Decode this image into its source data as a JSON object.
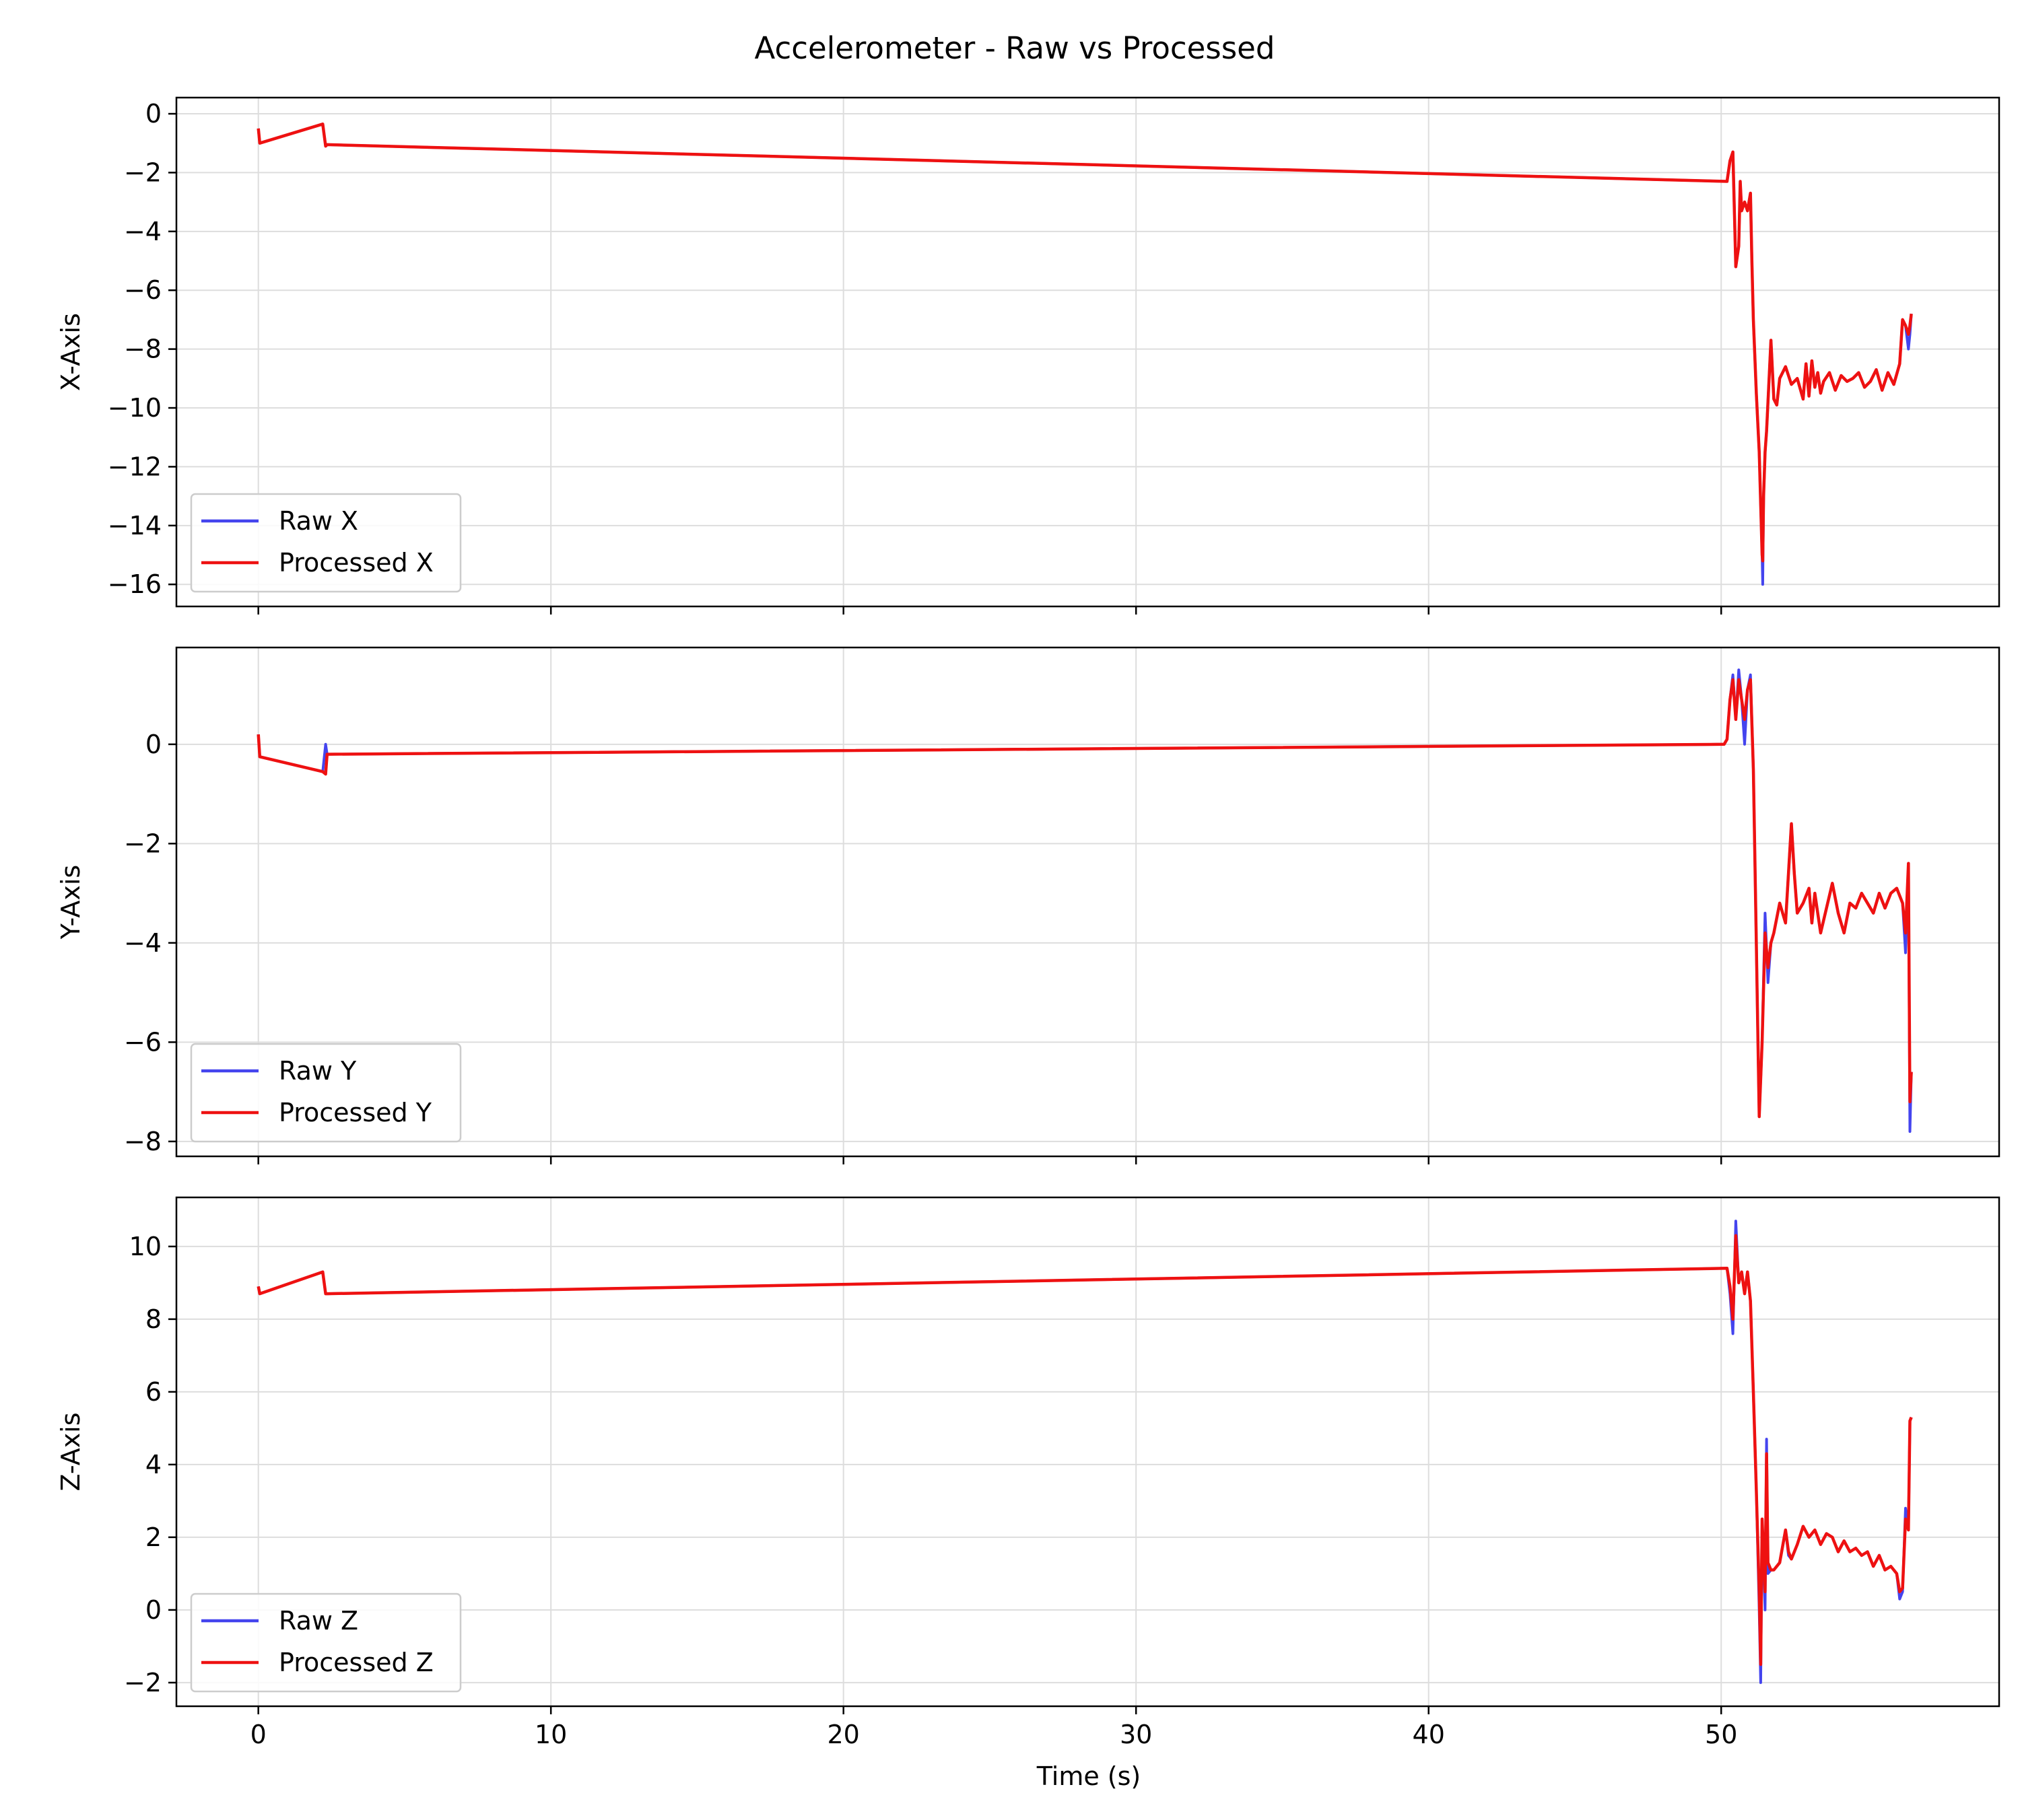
{
  "figure": {
    "title": "Accelerometer - Raw vs Processed",
    "xlabel": "Time (s)"
  },
  "colors": {
    "raw": "#4444ee",
    "processed": "#ee1111",
    "grid": "#dddddd",
    "axes": "#000000"
  },
  "chart_data": [
    {
      "type": "line",
      "ylabel": "X-Axis",
      "xlim": [
        -2.8,
        59.5
      ],
      "ylim": [
        -16.75,
        0.55
      ],
      "xticks": [
        0,
        10,
        20,
        30,
        40,
        50
      ],
      "yticks": [
        0,
        -2,
        -4,
        -6,
        -8,
        -10,
        -12,
        -14,
        -16
      ],
      "grid": true,
      "legend": "lower left",
      "series": [
        {
          "name": "Raw X",
          "role": "raw",
          "x": [
            0,
            0.05,
            2.2,
            2.3,
            2.35,
            50.2,
            50.3,
            50.4,
            50.5,
            50.6,
            50.65,
            50.7,
            50.8,
            50.9,
            51.0,
            51.05,
            51.1,
            51.2,
            51.3,
            51.4,
            51.42,
            51.45,
            51.5,
            51.55,
            51.6,
            51.7,
            51.8,
            51.9,
            52.0,
            52.2,
            52.4,
            52.6,
            52.8,
            52.9,
            53.0,
            53.1,
            53.2,
            53.3,
            53.4,
            53.5,
            53.7,
            53.9,
            54.1,
            54.3,
            54.5,
            54.7,
            54.9,
            55.1,
            55.3,
            55.5,
            55.7,
            55.9,
            56.1,
            56.2,
            56.3,
            56.4,
            56.45,
            56.5
          ],
          "y": [
            -0.5,
            -1.0,
            -0.35,
            -1.1,
            -1.05,
            -2.3,
            -1.6,
            -1.3,
            -5.2,
            -4.5,
            -2.3,
            -3.3,
            -3.0,
            -3.3,
            -2.7,
            -5.0,
            -7.0,
            -9.5,
            -11.5,
            -15.0,
            -16.0,
            -13.0,
            -11.5,
            -10.8,
            -9.8,
            -7.7,
            -9.7,
            -9.9,
            -9.0,
            -8.6,
            -9.2,
            -9.0,
            -9.7,
            -8.5,
            -9.6,
            -8.4,
            -9.3,
            -8.8,
            -9.5,
            -9.1,
            -8.8,
            -9.4,
            -8.9,
            -9.1,
            -9.0,
            -8.8,
            -9.3,
            -9.1,
            -8.7,
            -9.4,
            -8.8,
            -9.2,
            -8.5,
            -7.0,
            -7.2,
            -8.0,
            -7.5,
            -6.8
          ]
        },
        {
          "name": "Processed X",
          "role": "processed",
          "x": [
            0,
            0.05,
            2.2,
            2.3,
            2.35,
            50.2,
            50.3,
            50.4,
            50.5,
            50.6,
            50.65,
            50.7,
            50.8,
            50.9,
            51.0,
            51.05,
            51.1,
            51.2,
            51.3,
            51.4,
            51.42,
            51.45,
            51.5,
            51.55,
            51.6,
            51.7,
            51.8,
            51.9,
            52.0,
            52.2,
            52.4,
            52.6,
            52.8,
            52.9,
            53.0,
            53.1,
            53.2,
            53.3,
            53.4,
            53.5,
            53.7,
            53.9,
            54.1,
            54.3,
            54.5,
            54.7,
            54.9,
            55.1,
            55.3,
            55.5,
            55.7,
            55.9,
            56.1,
            56.2,
            56.3,
            56.4,
            56.45,
            56.5
          ],
          "y": [
            -0.5,
            -1.0,
            -0.35,
            -1.1,
            -1.05,
            -2.3,
            -1.6,
            -1.3,
            -5.2,
            -4.5,
            -2.3,
            -3.3,
            -3.0,
            -3.3,
            -2.7,
            -5.0,
            -7.0,
            -9.5,
            -11.5,
            -15.0,
            -15.2,
            -13.0,
            -11.5,
            -10.8,
            -9.8,
            -7.7,
            -9.7,
            -9.9,
            -9.0,
            -8.6,
            -9.2,
            -9.0,
            -9.7,
            -8.5,
            -9.6,
            -8.4,
            -9.3,
            -8.8,
            -9.5,
            -9.1,
            -8.8,
            -9.4,
            -8.9,
            -9.1,
            -9.0,
            -8.8,
            -9.3,
            -9.1,
            -8.7,
            -9.4,
            -8.8,
            -9.2,
            -8.5,
            -7.0,
            -7.2,
            -7.5,
            -7.2,
            -6.8
          ]
        }
      ]
    },
    {
      "type": "line",
      "ylabel": "Y-Axis",
      "xlim": [
        -2.8,
        59.5
      ],
      "ylim": [
        -8.3,
        1.95
      ],
      "xticks": [
        0,
        10,
        20,
        30,
        40,
        50
      ],
      "yticks": [
        0,
        -2,
        -4,
        -6,
        -8
      ],
      "grid": true,
      "legend": "lower left",
      "series": [
        {
          "name": "Raw Y",
          "role": "raw",
          "x": [
            0,
            0.05,
            2.2,
            2.3,
            2.35,
            50.1,
            50.2,
            50.3,
            50.4,
            50.5,
            50.6,
            50.7,
            50.8,
            50.9,
            51.0,
            51.1,
            51.2,
            51.3,
            51.4,
            51.5,
            51.6,
            51.7,
            51.8,
            52.0,
            52.2,
            52.4,
            52.5,
            52.6,
            52.8,
            53.0,
            53.1,
            53.2,
            53.4,
            53.6,
            53.8,
            54.0,
            54.2,
            54.4,
            54.6,
            54.8,
            55.0,
            55.2,
            55.4,
            55.6,
            55.8,
            56.0,
            56.2,
            56.3,
            56.4,
            56.45,
            56.5
          ],
          "y": [
            0.2,
            -0.25,
            -0.55,
            0.0,
            -0.2,
            0.0,
            0.1,
            0.9,
            1.4,
            0.5,
            1.5,
            0.9,
            0.0,
            1.1,
            1.4,
            -0.5,
            -4.0,
            -7.5,
            -6.0,
            -3.4,
            -4.8,
            -4.0,
            -3.8,
            -3.2,
            -3.6,
            -1.6,
            -2.6,
            -3.4,
            -3.2,
            -2.9,
            -3.6,
            -3.0,
            -3.8,
            -3.3,
            -2.8,
            -3.4,
            -3.8,
            -3.2,
            -3.3,
            -3.0,
            -3.2,
            -3.4,
            -3.0,
            -3.3,
            -3.0,
            -2.9,
            -3.2,
            -4.2,
            -2.4,
            -7.8,
            -6.6
          ]
        },
        {
          "name": "Processed Y",
          "role": "processed",
          "x": [
            0,
            0.05,
            2.2,
            2.3,
            2.35,
            50.1,
            50.2,
            50.3,
            50.4,
            50.5,
            50.6,
            50.7,
            50.8,
            50.9,
            51.0,
            51.1,
            51.2,
            51.3,
            51.4,
            51.5,
            51.6,
            51.7,
            51.8,
            52.0,
            52.2,
            52.4,
            52.5,
            52.6,
            52.8,
            53.0,
            53.1,
            53.2,
            53.4,
            53.6,
            53.8,
            54.0,
            54.2,
            54.4,
            54.6,
            54.8,
            55.0,
            55.2,
            55.4,
            55.6,
            55.8,
            56.0,
            56.2,
            56.3,
            56.4,
            56.45,
            56.5
          ],
          "y": [
            0.2,
            -0.25,
            -0.55,
            -0.6,
            -0.2,
            0.0,
            0.1,
            0.9,
            1.3,
            0.5,
            1.3,
            0.9,
            0.5,
            1.1,
            1.3,
            -0.5,
            -4.0,
            -7.5,
            -6.0,
            -3.8,
            -4.5,
            -4.0,
            -3.8,
            -3.2,
            -3.6,
            -1.6,
            -2.6,
            -3.4,
            -3.2,
            -2.9,
            -3.6,
            -3.0,
            -3.8,
            -3.3,
            -2.8,
            -3.4,
            -3.8,
            -3.2,
            -3.3,
            -3.0,
            -3.2,
            -3.4,
            -3.0,
            -3.3,
            -3.0,
            -2.9,
            -3.2,
            -3.8,
            -2.4,
            -7.2,
            -6.6
          ]
        }
      ]
    },
    {
      "type": "line",
      "ylabel": "Z-Axis",
      "xlim": [
        -2.8,
        59.5
      ],
      "ylim": [
        -2.65,
        11.35
      ],
      "xticks": [
        0,
        10,
        20,
        30,
        40,
        50
      ],
      "yticks": [
        10,
        8,
        6,
        4,
        2,
        0,
        -2
      ],
      "grid": true,
      "legend": "lower left",
      "series": [
        {
          "name": "Raw Z",
          "role": "raw",
          "x": [
            0,
            0.05,
            2.2,
            2.3,
            2.35,
            50.2,
            50.3,
            50.4,
            50.5,
            50.6,
            50.7,
            50.8,
            50.9,
            51.0,
            51.1,
            51.2,
            51.3,
            51.35,
            51.4,
            51.5,
            51.55,
            51.6,
            51.7,
            51.8,
            52.0,
            52.2,
            52.3,
            52.4,
            52.6,
            52.8,
            53.0,
            53.2,
            53.4,
            53.6,
            53.8,
            54.0,
            54.2,
            54.4,
            54.6,
            54.8,
            55.0,
            55.2,
            55.4,
            55.6,
            55.8,
            56.0,
            56.1,
            56.2,
            56.3,
            56.4,
            56.45,
            56.5
          ],
          "y": [
            8.9,
            8.7,
            9.3,
            8.7,
            8.7,
            9.4,
            8.7,
            7.6,
            10.7,
            9.0,
            9.3,
            8.7,
            9.3,
            8.5,
            6.0,
            3.3,
            0.0,
            -2.0,
            2.5,
            0.0,
            4.7,
            1.0,
            1.1,
            1.1,
            1.3,
            2.2,
            1.5,
            1.4,
            1.8,
            2.3,
            2.0,
            2.2,
            1.8,
            2.1,
            2.0,
            1.6,
            1.9,
            1.6,
            1.7,
            1.5,
            1.6,
            1.2,
            1.5,
            1.1,
            1.2,
            1.0,
            0.3,
            0.5,
            2.8,
            2.2,
            5.2,
            5.3
          ]
        },
        {
          "name": "Processed Z",
          "role": "processed",
          "x": [
            0,
            0.05,
            2.2,
            2.3,
            2.35,
            50.2,
            50.3,
            50.4,
            50.5,
            50.6,
            50.7,
            50.8,
            50.9,
            51.0,
            51.1,
            51.2,
            51.3,
            51.35,
            51.4,
            51.5,
            51.55,
            51.6,
            51.7,
            51.8,
            52.0,
            52.2,
            52.3,
            52.4,
            52.6,
            52.8,
            53.0,
            53.2,
            53.4,
            53.6,
            53.8,
            54.0,
            54.2,
            54.4,
            54.6,
            54.8,
            55.0,
            55.2,
            55.4,
            55.6,
            55.8,
            56.0,
            56.1,
            56.2,
            56.3,
            56.4,
            56.45,
            56.5
          ],
          "y": [
            8.9,
            8.7,
            9.3,
            8.7,
            8.7,
            9.4,
            8.9,
            8.0,
            10.3,
            9.0,
            9.3,
            8.7,
            9.3,
            8.5,
            6.0,
            3.3,
            0.5,
            -1.5,
            2.5,
            0.5,
            4.3,
            1.3,
            1.1,
            1.1,
            1.3,
            2.2,
            1.6,
            1.4,
            1.8,
            2.3,
            2.0,
            2.2,
            1.8,
            2.1,
            2.0,
            1.6,
            1.9,
            1.6,
            1.7,
            1.5,
            1.6,
            1.2,
            1.5,
            1.1,
            1.2,
            1.0,
            0.5,
            0.6,
            2.5,
            2.2,
            5.2,
            5.3
          ]
        }
      ]
    }
  ]
}
